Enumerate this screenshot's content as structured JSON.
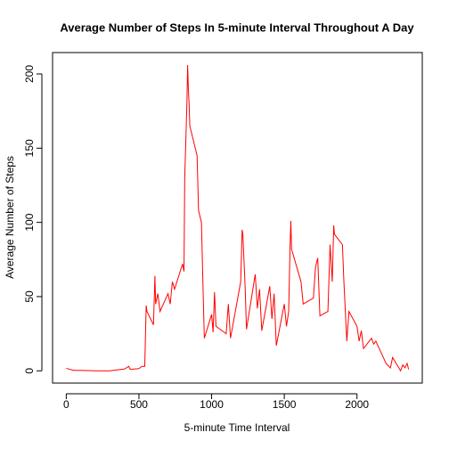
{
  "chart_data": {
    "type": "line",
    "title": "Average Number of Steps In 5-minute Interval Throughout A Day",
    "x_label": "5-minute Time Interval",
    "y_label": "Average Number of Steps",
    "x": [
      0,
      50,
      100,
      200,
      300,
      400,
      430,
      440,
      500,
      520,
      540,
      550,
      555,
      600,
      610,
      615,
      630,
      645,
      700,
      715,
      730,
      745,
      800,
      810,
      815,
      830,
      835,
      840,
      845,
      850,
      900,
      910,
      930,
      945,
      950,
      1000,
      1010,
      1020,
      1030,
      1100,
      1115,
      1130,
      1200,
      1210,
      1215,
      1230,
      1240,
      1300,
      1315,
      1330,
      1345,
      1400,
      1415,
      1430,
      1445,
      1500,
      1515,
      1530,
      1540,
      1545,
      1550,
      1600,
      1615,
      1630,
      1700,
      1715,
      1730,
      1745,
      1800,
      1815,
      1830,
      1840,
      1845,
      1900,
      1910,
      1930,
      1945,
      2000,
      2015,
      2030,
      2045,
      2100,
      2115,
      2130,
      2200,
      2230,
      2245,
      2300,
      2315,
      2330,
      2345,
      2355
    ],
    "series": [
      {
        "name": "Average Number of Steps",
        "color": "#ff0000",
        "values": [
          1.7,
          0.3,
          0.3,
          0,
          0,
          1.2,
          3,
          1,
          1.5,
          3,
          3,
          44,
          40,
          31,
          64,
          45,
          52,
          40,
          52,
          45,
          60,
          55,
          72,
          67,
          130,
          180,
          206,
          190,
          180,
          165,
          145,
          108,
          100,
          40,
          22,
          38,
          26,
          53,
          30,
          25,
          45,
          22,
          60,
          95,
          92,
          58,
          28,
          65,
          42,
          55,
          27,
          57,
          35,
          52,
          17,
          45,
          30,
          40,
          85,
          101,
          82,
          65,
          60,
          45,
          49,
          70,
          76,
          37,
          40,
          85,
          60,
          98,
          92,
          85,
          60,
          20,
          40,
          30,
          20,
          27,
          15,
          22,
          18,
          20,
          5,
          2,
          9,
          0,
          4,
          2,
          5,
          1
        ]
      }
    ],
    "xlim": [
      -94.2,
      2449.2
    ],
    "ylim": [
      -8.25,
      214.4
    ],
    "xticks": [
      0,
      500,
      1000,
      1500,
      2000
    ],
    "yticks": [
      0,
      50,
      100,
      150,
      200
    ]
  }
}
